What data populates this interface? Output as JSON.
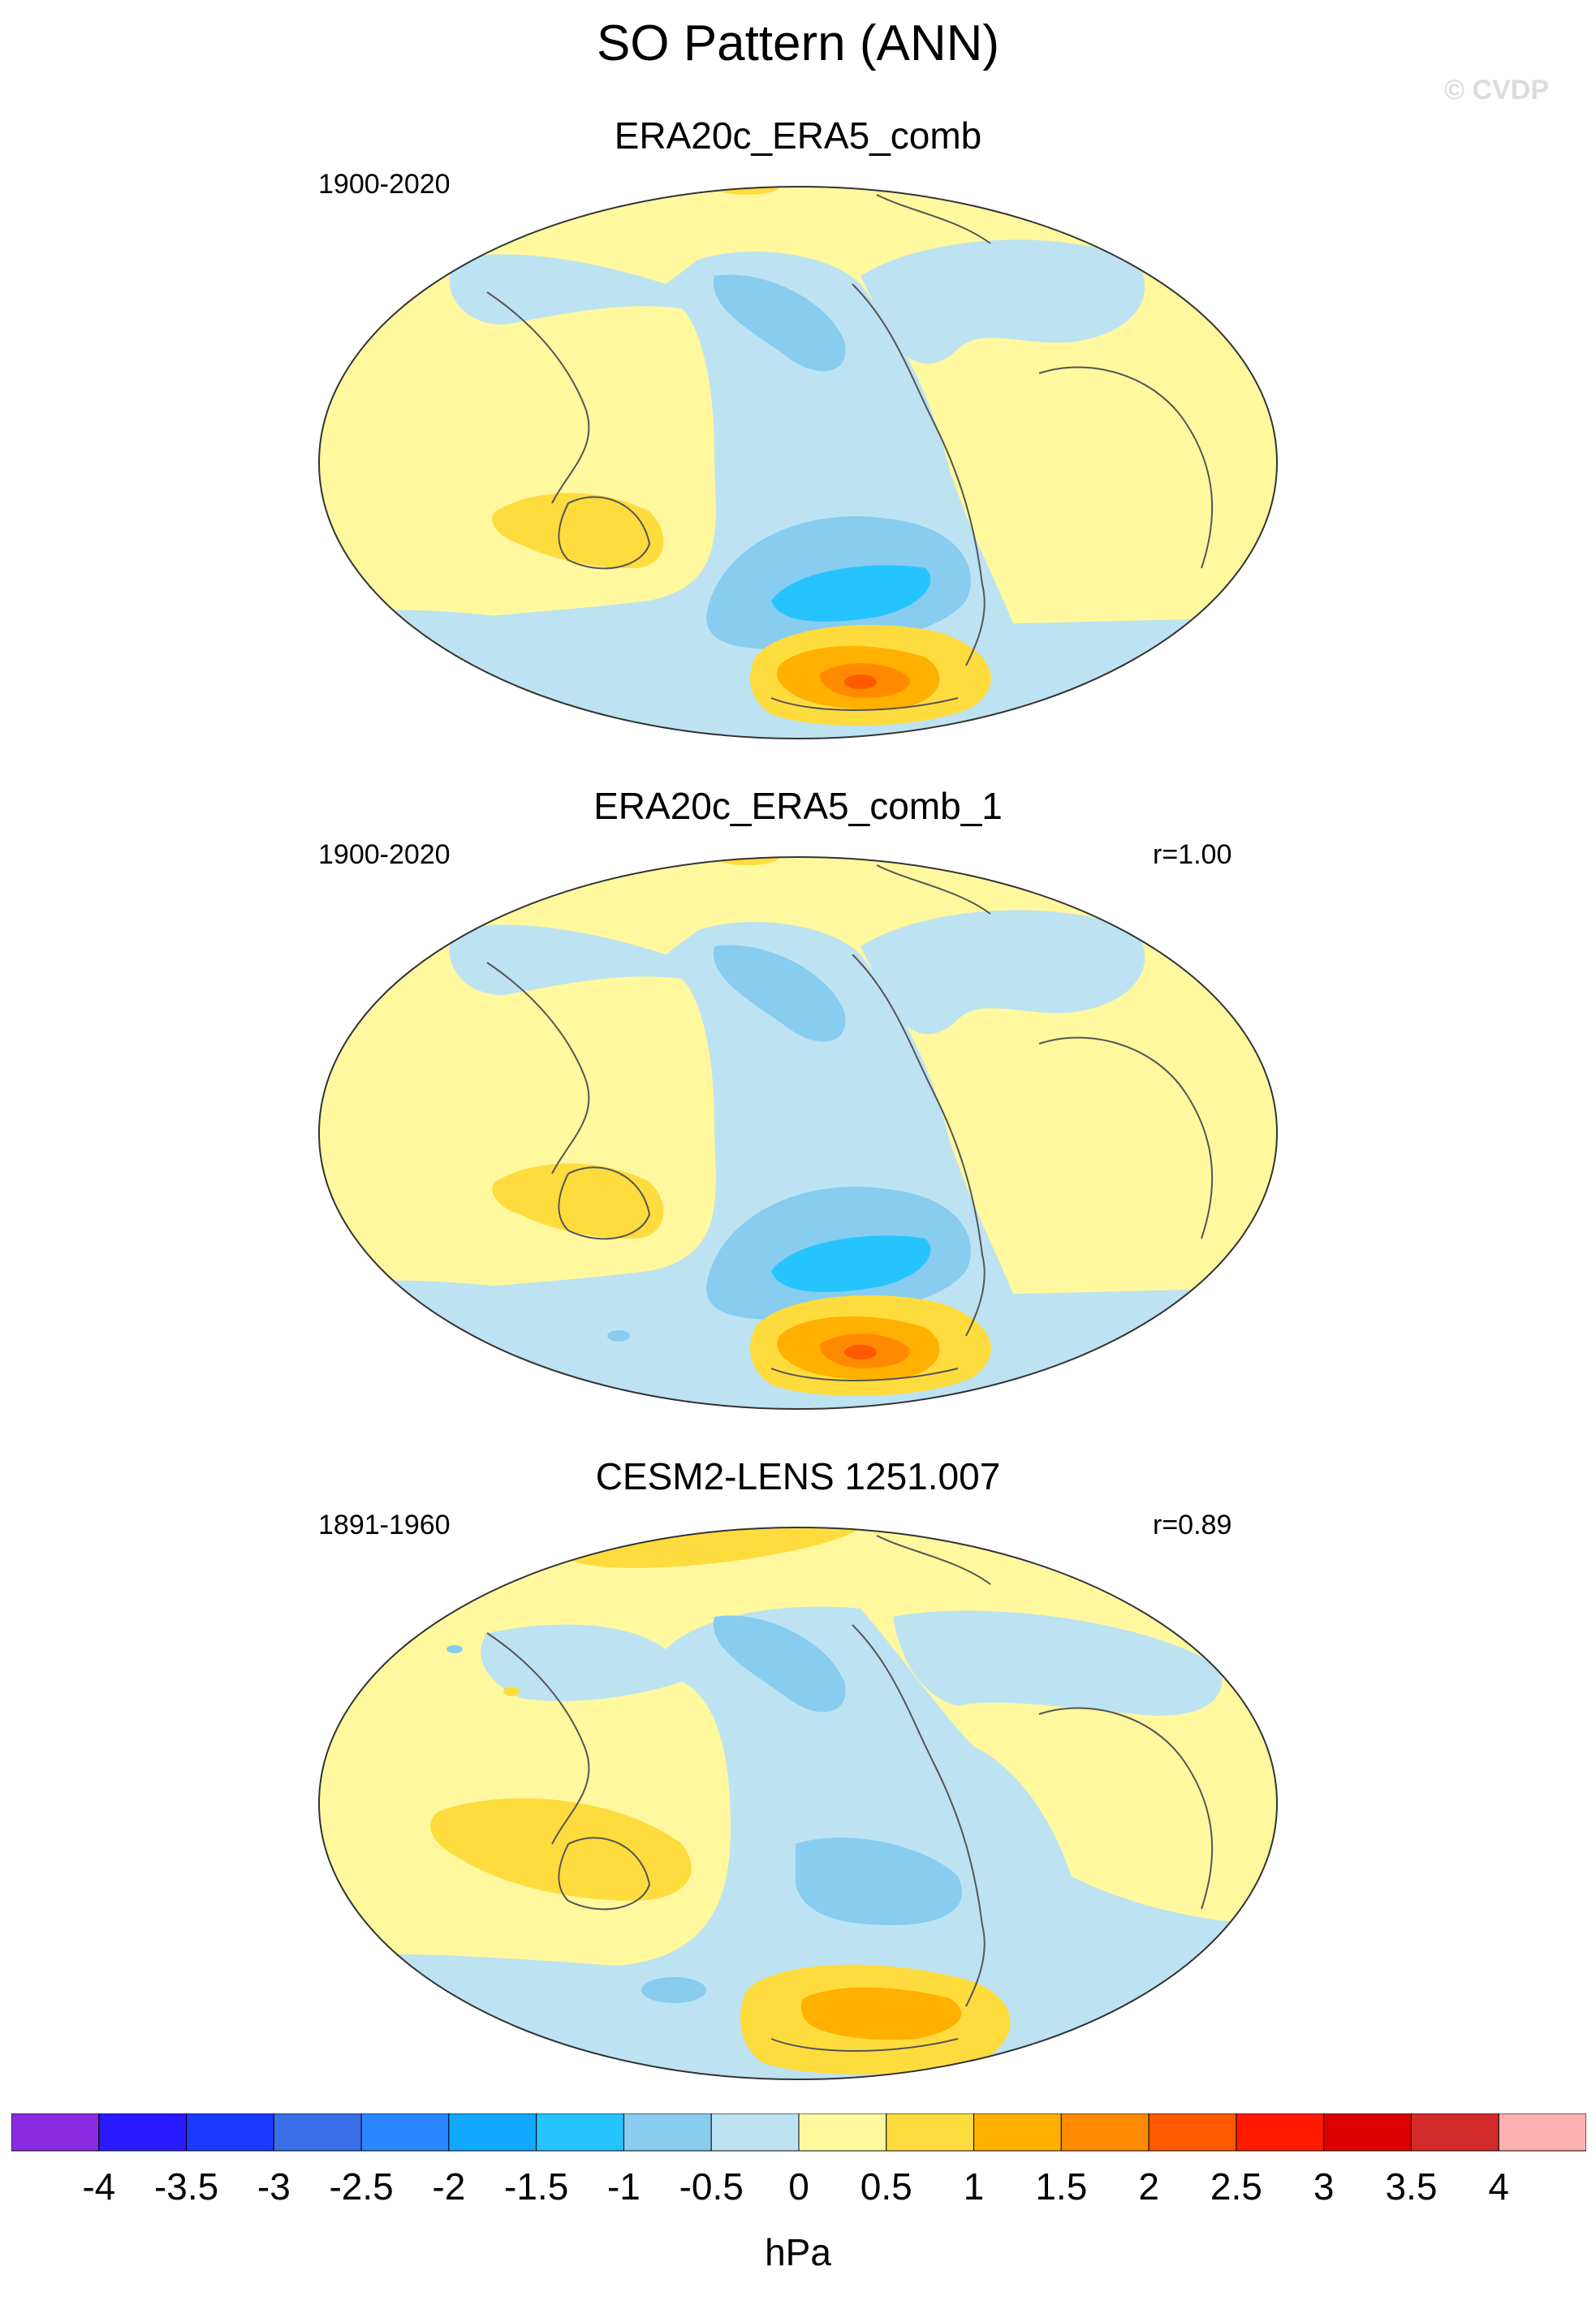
{
  "title": "SO Pattern (ANN)",
  "watermark": "© CVDP",
  "panels": [
    {
      "title": "ERA20c_ERA5_comb",
      "period": "1900-2020",
      "corr": ""
    },
    {
      "title": "ERA20c_ERA5_comb_1",
      "period": "1900-2020",
      "corr": "r=1.00"
    },
    {
      "title": "CESM2-LENS 1251.007",
      "period": "1891-1960",
      "corr": "r=0.89"
    }
  ],
  "colorbar": {
    "units": "hPa",
    "labels": [
      "-4",
      "-3.5",
      "-3",
      "-2.5",
      "-2",
      "-1.5",
      "-1",
      "-0.5",
      "0",
      "0.5",
      "1",
      "1.5",
      "2",
      "2.5",
      "3",
      "3.5",
      "4"
    ],
    "colors": [
      "#8a2be2",
      "#2a1aff",
      "#1a3aff",
      "#3a6ee6",
      "#2a86ff",
      "#12a8ff",
      "#26c4ff",
      "#88ccf0",
      "#bde3f2",
      "#fff89e",
      "#ffdc3e",
      "#ffb000",
      "#ff8a00",
      "#ff5a00",
      "#ff1a00",
      "#dd0000",
      "#d42a2a",
      "#ffb0b0"
    ]
  },
  "map_colors": {
    "land_pos": "#fff89e",
    "ocean_neg": "#bde3f2",
    "neg1": "#88ccf0",
    "neg2": "#26c4ff",
    "pos1": "#ffdc3e",
    "pos2": "#ffb000",
    "pos3": "#ff8a00",
    "pos4": "#ff5a00",
    "coast": "#555555"
  }
}
